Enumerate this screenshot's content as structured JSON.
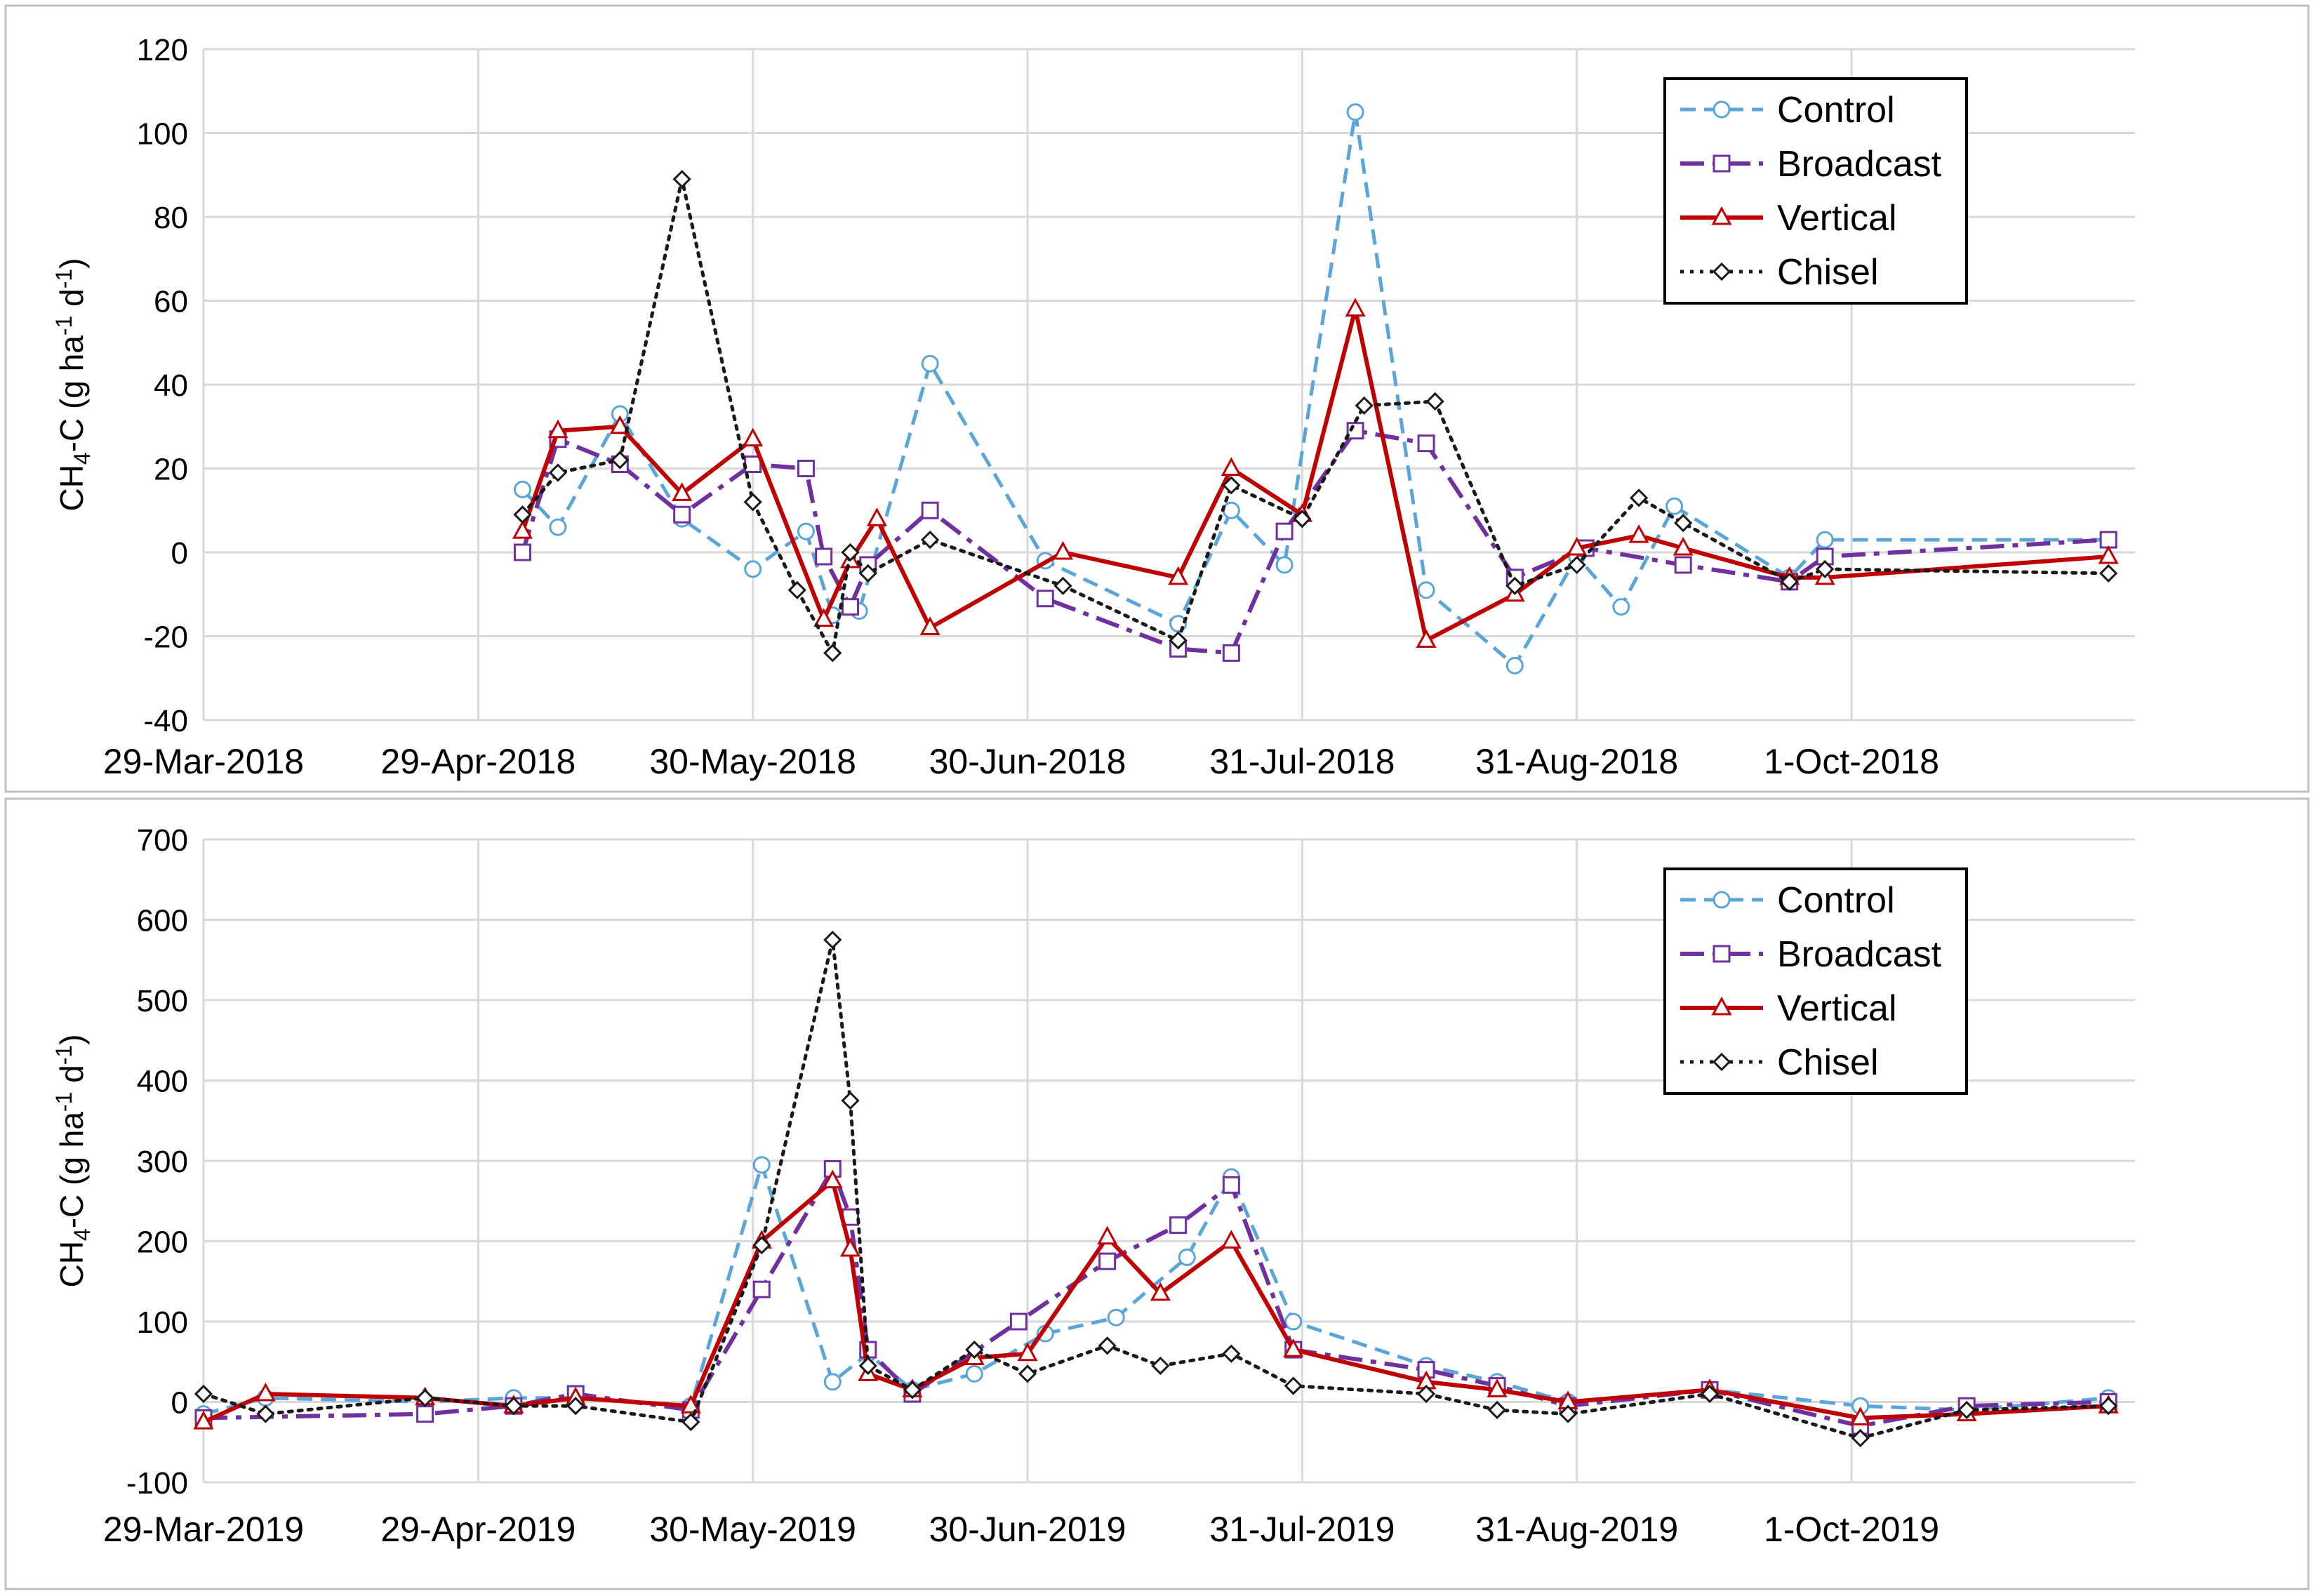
{
  "colors": {
    "control": "#5aa5d9",
    "broadcast": "#7030a0",
    "vertical": "#c00000",
    "chisel": "#1a1a1a",
    "grid": "#d9d9d9",
    "frame": "#bfbfbf"
  },
  "chart_data": [
    {
      "type": "line",
      "ylabel": "CH4-C (g ha-1 d-1)",
      "ylabel_parts": {
        "main": "CH",
        "sub": "4",
        "mid": "-C (g ha",
        "sup1": "-1",
        "gap": " d",
        "sup2": "-1",
        "end": ")"
      },
      "ylim": [
        -40,
        120
      ],
      "yticks": [
        -40,
        -20,
        0,
        20,
        40,
        60,
        80,
        100,
        120
      ],
      "x_start": 0,
      "x_end": 218,
      "xticks": [
        {
          "x": 0,
          "label": "29-Mar-2018"
        },
        {
          "x": 31,
          "label": "29-Apr-2018"
        },
        {
          "x": 62,
          "label": "30-May-2018"
        },
        {
          "x": 93,
          "label": "30-Jun-2018"
        },
        {
          "x": 124,
          "label": "31-Jul-2018"
        },
        {
          "x": 155,
          "label": "31-Aug-2018"
        },
        {
          "x": 186,
          "label": "1-Oct-2018"
        }
      ],
      "series": [
        {
          "key": "control",
          "name": "Control",
          "dash": "dashed",
          "marker": "circle",
          "x": [
            36,
            40,
            47,
            54,
            62,
            68,
            71,
            74,
            82,
            95,
            110,
            116,
            122,
            130,
            138,
            148,
            155,
            160,
            166,
            179,
            183,
            215
          ],
          "y": [
            15,
            6,
            33,
            8,
            -4,
            5,
            -15,
            -14,
            45,
            -2,
            -17,
            10,
            -3,
            105,
            -9,
            -27,
            -1,
            -13,
            11,
            -6,
            3,
            3
          ]
        },
        {
          "key": "broadcast",
          "name": "Broadcast",
          "dash": "dashdot",
          "marker": "square",
          "x": [
            36,
            40,
            47,
            54,
            62,
            68,
            70,
            73,
            75,
            82,
            95,
            110,
            116,
            122,
            130,
            138,
            148,
            156,
            167,
            179,
            183,
            215
          ],
          "y": [
            0,
            27,
            21,
            9,
            21,
            20,
            -1,
            -13,
            -3,
            10,
            -11,
            -23,
            -24,
            5,
            29,
            26,
            -6,
            1,
            -3,
            -7,
            -1,
            3
          ]
        },
        {
          "key": "vertical",
          "name": "Vertical",
          "dash": "solid",
          "marker": "triangle",
          "x": [
            36,
            40,
            47,
            54,
            62,
            70,
            73,
            76,
            82,
            97,
            110,
            116,
            124,
            130,
            138,
            148,
            155,
            162,
            167,
            179,
            183,
            215
          ],
          "y": [
            5,
            29,
            30,
            14,
            27,
            -16,
            -2,
            8,
            -18,
            0,
            -6,
            20,
            9,
            58,
            -21,
            -10,
            1,
            4,
            1,
            -6,
            -6,
            -1
          ]
        },
        {
          "key": "chisel",
          "name": "Chisel",
          "dash": "dotted",
          "marker": "diamond",
          "x": [
            36,
            40,
            47,
            54,
            62,
            67,
            71,
            73,
            75,
            82,
            97,
            110,
            116,
            124,
            131,
            139,
            148,
            155,
            162,
            167,
            179,
            183,
            215
          ],
          "y": [
            9,
            19,
            22,
            89,
            12,
            -9,
            -24,
            0,
            -5,
            3,
            -8,
            -21,
            16,
            8,
            35,
            36,
            -8,
            -3,
            13,
            7,
            -7,
            -4,
            -5
          ]
        }
      ],
      "legend": [
        "Control",
        "Broadcast",
        "Vertical",
        "Chisel"
      ],
      "legend_position": "top-right"
    },
    {
      "type": "line",
      "ylabel": "CH4-C (g ha-1 d-1)",
      "ylabel_parts": {
        "main": "CH",
        "sub": "4",
        "mid": "-C (g ha",
        "sup1": "-1",
        "gap": " d",
        "sup2": "-1",
        "end": ")"
      },
      "ylim": [
        -100,
        700
      ],
      "yticks": [
        -100,
        0,
        100,
        200,
        300,
        400,
        500,
        600,
        700
      ],
      "x_start": 0,
      "x_end": 218,
      "xticks": [
        {
          "x": 0,
          "label": "29-Mar-2019"
        },
        {
          "x": 31,
          "label": "29-Apr-2019"
        },
        {
          "x": 62,
          "label": "30-May-2019"
        },
        {
          "x": 93,
          "label": "30-Jun-2019"
        },
        {
          "x": 124,
          "label": "31-Jul-2019"
        },
        {
          "x": 155,
          "label": "31-Aug-2019"
        },
        {
          "x": 186,
          "label": "1-Oct-2019"
        }
      ],
      "series": [
        {
          "key": "control",
          "name": "Control",
          "dash": "dashed",
          "marker": "circle",
          "x": [
            0,
            7,
            25,
            35,
            42,
            55,
            63,
            71,
            75,
            80,
            87,
            95,
            103,
            111,
            116,
            123,
            138,
            146,
            154,
            170,
            187,
            199,
            215
          ],
          "y": [
            -15,
            5,
            0,
            5,
            5,
            -5,
            295,
            25,
            60,
            15,
            35,
            85,
            105,
            180,
            280,
            100,
            45,
            25,
            0,
            15,
            -5,
            -10,
            5
          ]
        },
        {
          "key": "broadcast",
          "name": "Broadcast",
          "dash": "dashdot",
          "marker": "square",
          "x": [
            0,
            25,
            35,
            42,
            55,
            63,
            71,
            73,
            75,
            80,
            92,
            102,
            110,
            116,
            123,
            138,
            146,
            154,
            170,
            187,
            199,
            215
          ],
          "y": [
            -20,
            -15,
            -5,
            10,
            -10,
            140,
            290,
            230,
            65,
            10,
            100,
            175,
            220,
            270,
            65,
            40,
            20,
            -5,
            15,
            -30,
            -5,
            0
          ]
        },
        {
          "key": "vertical",
          "name": "Vertical",
          "dash": "solid",
          "marker": "triangle",
          "x": [
            0,
            7,
            25,
            35,
            42,
            55,
            63,
            71,
            73,
            75,
            80,
            87,
            93,
            102,
            108,
            116,
            123,
            138,
            146,
            154,
            170,
            187,
            199,
            215
          ],
          "y": [
            -25,
            10,
            5,
            -5,
            5,
            -5,
            200,
            275,
            190,
            35,
            15,
            55,
            60,
            205,
            135,
            200,
            65,
            25,
            15,
            0,
            15,
            -20,
            -15,
            -5
          ]
        },
        {
          "key": "chisel",
          "name": "Chisel",
          "dash": "dotted",
          "marker": "diamond",
          "x": [
            0,
            7,
            25,
            35,
            42,
            55,
            63,
            71,
            73,
            75,
            80,
            87,
            93,
            102,
            108,
            116,
            123,
            138,
            146,
            154,
            170,
            187,
            199,
            215
          ],
          "y": [
            10,
            -15,
            5,
            -5,
            -5,
            -25,
            195,
            575,
            375,
            45,
            15,
            65,
            35,
            70,
            45,
            60,
            20,
            10,
            -10,
            -15,
            10,
            -45,
            -10,
            -5
          ]
        }
      ],
      "legend": [
        "Control",
        "Broadcast",
        "Vertical",
        "Chisel"
      ],
      "legend_position": "top-right"
    }
  ]
}
